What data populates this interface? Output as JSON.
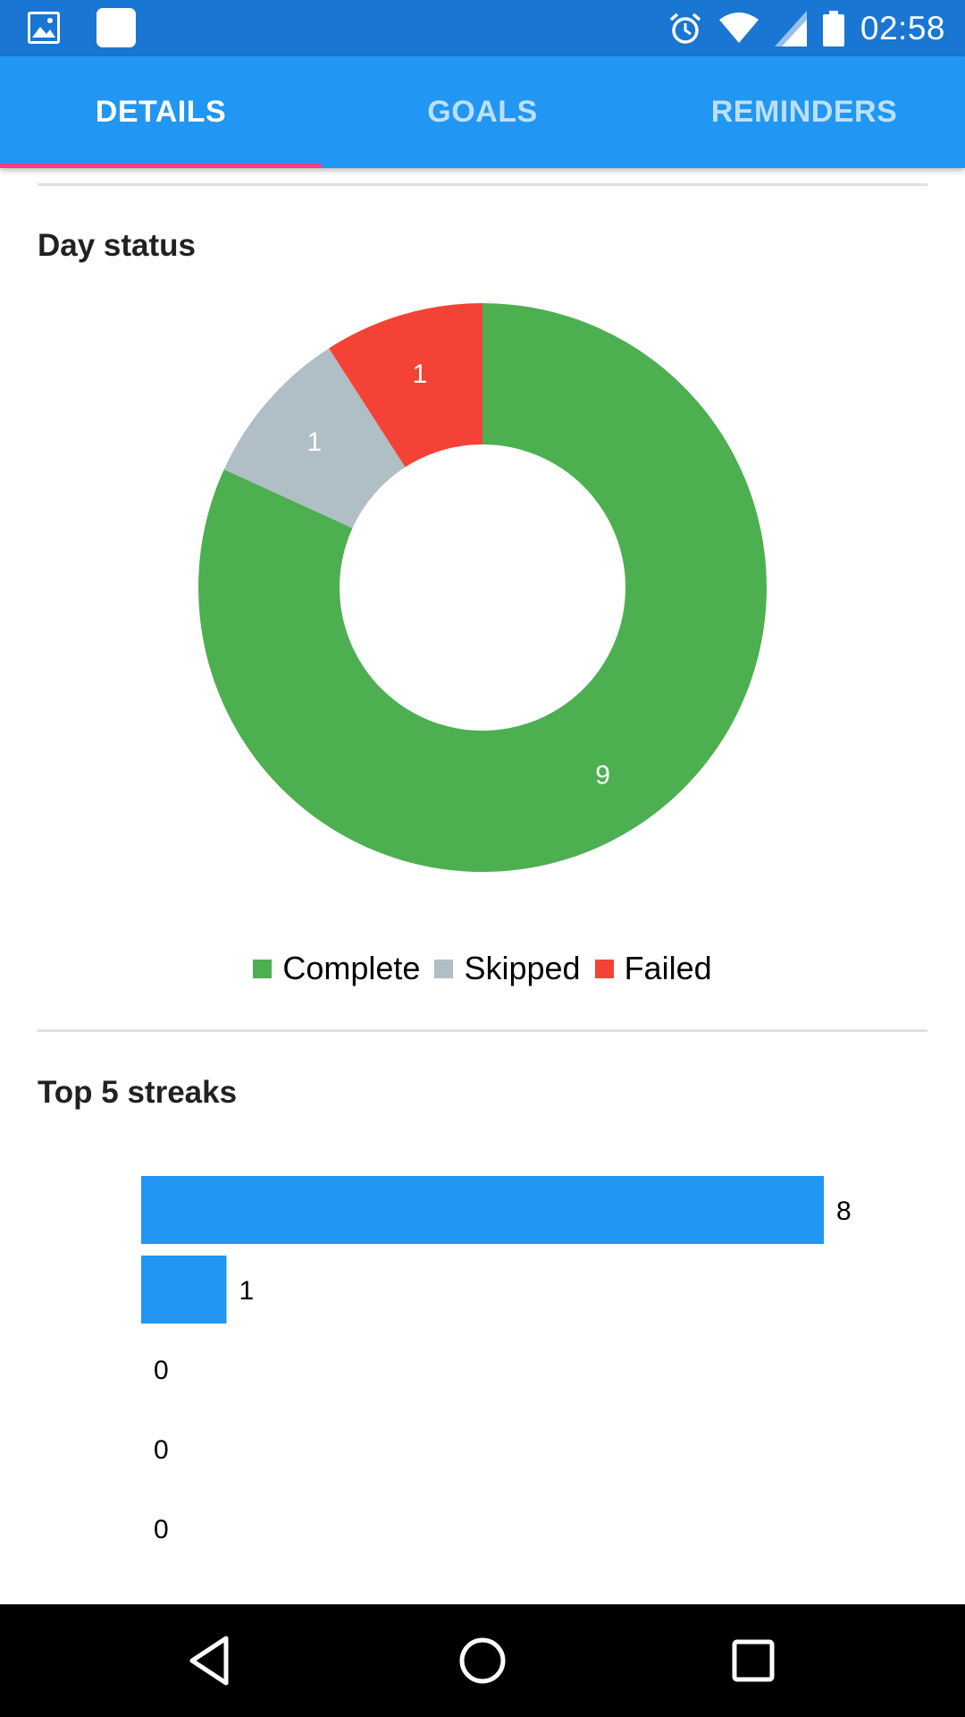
{
  "status_bar": {
    "time": "02:58",
    "left_icons": [
      "image-notification-icon",
      "app-notification-icon"
    ],
    "right_icons": [
      "alarm-icon",
      "wifi-icon",
      "cell-signal-icon",
      "battery-icon"
    ]
  },
  "tabs": [
    {
      "label": "DETAILS",
      "active": true
    },
    {
      "label": "GOALS",
      "active": false
    },
    {
      "label": "REMINDERS",
      "active": false
    }
  ],
  "colors": {
    "status_bar": "#1976d2",
    "tab_bar": "#2196f3",
    "tab_indicator": "#ff4081",
    "complete": "#4caf50",
    "skipped": "#b0bec5",
    "failed": "#f44336",
    "bar": "#2196f3"
  },
  "day_status": {
    "title": "Day status",
    "legend": [
      {
        "label": "Complete",
        "color": "#4caf50"
      },
      {
        "label": "Skipped",
        "color": "#b0bec5"
      },
      {
        "label": "Failed",
        "color": "#f44336"
      }
    ]
  },
  "top_streaks": {
    "title": "Top 5 streaks"
  },
  "chart_data": [
    {
      "type": "pie",
      "title": "Day status",
      "categories": [
        "Complete",
        "Skipped",
        "Failed"
      ],
      "values": [
        9,
        1,
        1
      ],
      "labels": [
        "9",
        "1",
        "1"
      ],
      "colors": [
        "#4caf50",
        "#b0bec5",
        "#f44336"
      ],
      "legend_placement": "bottom"
    },
    {
      "type": "bar",
      "orientation": "horizontal",
      "title": "Top 5 streaks",
      "values": [
        8,
        1,
        0,
        0,
        0
      ],
      "labels": [
        "8",
        "1",
        "0",
        "0",
        "0"
      ],
      "color": "#2196f3",
      "xlim": [
        0,
        8
      ]
    }
  ],
  "nav_bar": {
    "buttons": [
      "back-button",
      "home-button",
      "recents-button"
    ]
  }
}
